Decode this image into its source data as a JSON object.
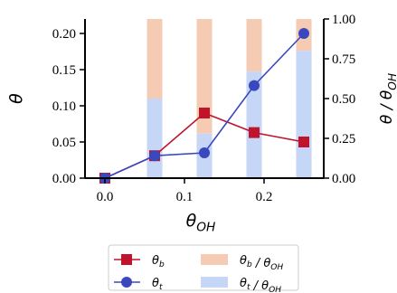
{
  "chart_data": {
    "type": "bar+line",
    "x": [
      0.0,
      0.0625,
      0.125,
      0.1875,
      0.25
    ],
    "xlabel": "θ_OH",
    "xticks": [
      "0.0",
      "0.1",
      "0.2"
    ],
    "xtick_values": [
      0.0,
      0.1,
      0.2
    ],
    "xlim": [
      -0.025,
      0.275
    ],
    "ylabel_left": "θ",
    "ylim_left": [
      0,
      0.22
    ],
    "yticks_left": [
      "0.00",
      "0.05",
      "0.10",
      "0.15",
      "0.20"
    ],
    "ytick_values_left": [
      0.0,
      0.05,
      0.1,
      0.15,
      0.2
    ],
    "ylabel_right": "θ / θ_OH",
    "ylim_right": [
      0,
      1.0
    ],
    "yticks_right": [
      "0.00",
      "0.25",
      "0.50",
      "0.75",
      "1.00"
    ],
    "ytick_values_right": [
      0.0,
      0.25,
      0.5,
      0.75,
      1.0
    ],
    "line_series": [
      {
        "name": "θ_b",
        "marker": "square",
        "color": "#c0132c",
        "values": [
          0.0,
          0.031,
          0.09,
          0.063,
          0.05
        ]
      },
      {
        "name": "θ_t",
        "marker": "circle",
        "color": "#3a48c0",
        "values": [
          0.0,
          0.031,
          0.035,
          0.128,
          0.2
        ]
      }
    ],
    "bar_series": [
      {
        "name": "θ_b / θ_OH",
        "color": "#f5cbb4",
        "values": [
          null,
          0.5,
          0.72,
          0.33,
          0.2
        ]
      },
      {
        "name": "θ_t / θ_OH",
        "color": "#c5d6f6",
        "values": [
          null,
          0.5,
          0.28,
          0.67,
          0.8
        ]
      }
    ],
    "legend_position": "bottom-outside",
    "grid": false
  }
}
